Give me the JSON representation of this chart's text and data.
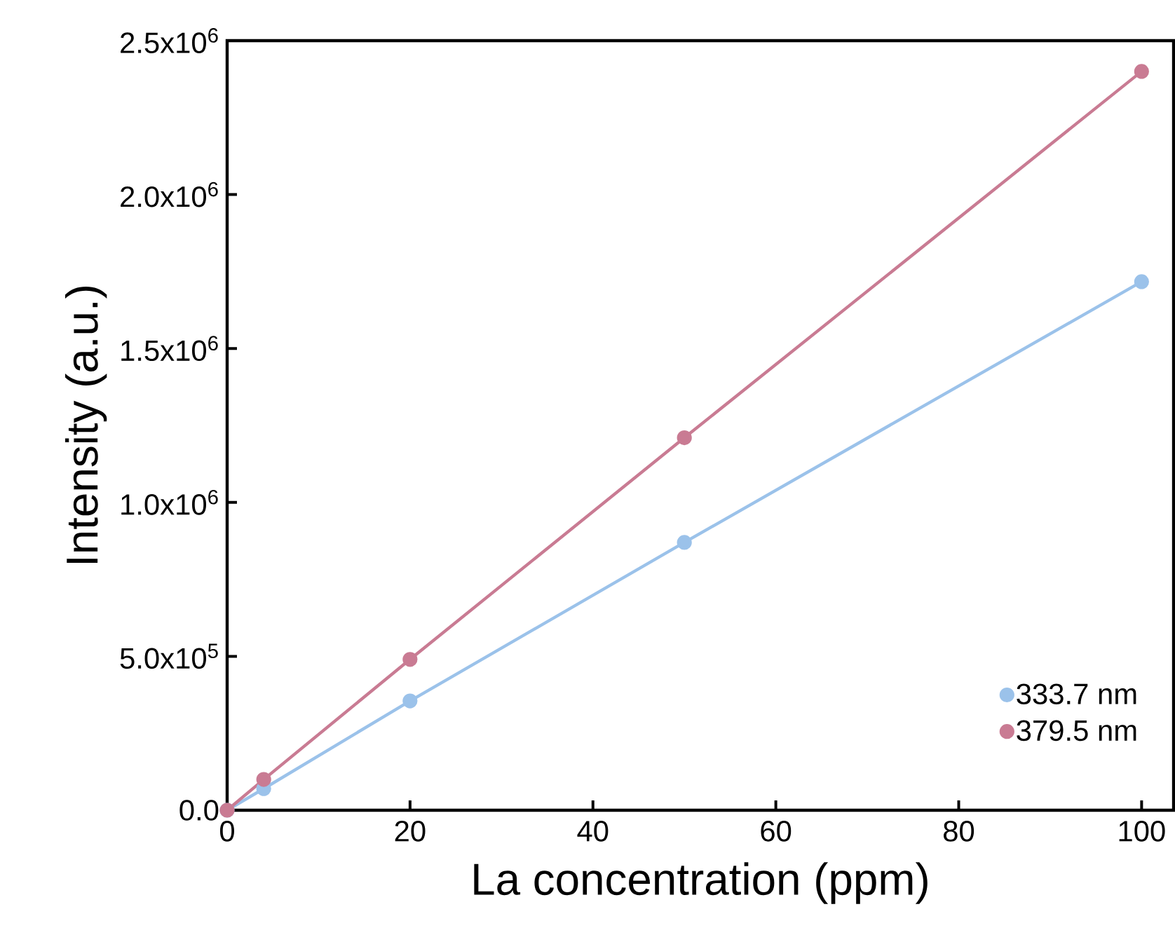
{
  "chart_data": {
    "type": "line",
    "xlabel": "La concentration (ppm)",
    "ylabel": "Intensity (a.u.)",
    "x": [
      0,
      4,
      20,
      50,
      100
    ],
    "series": [
      {
        "name": "333.7 nm",
        "color": "#9bc2ea",
        "values": [
          0,
          70000,
          355000,
          870000,
          1717000
        ]
      },
      {
        "name": "379.5 nm",
        "color": "#c97b93",
        "values": [
          0,
          100000,
          490000,
          1210000,
          2400000
        ]
      }
    ],
    "xlim": [
      0,
      103.5
    ],
    "ylim": [
      0,
      2500000
    ],
    "xticks": [
      0,
      20,
      40,
      60,
      80,
      100
    ],
    "yticks": [
      {
        "value": 0,
        "label": "0.0"
      },
      {
        "value": 500000,
        "label": "5.0x10$^{5}$"
      },
      {
        "value": 1000000,
        "label": "1.0x10$^{6}$"
      },
      {
        "value": 1500000,
        "label": "1.5x10$^{6}$"
      },
      {
        "value": 2000000,
        "label": "2.0x10$^{6}$"
      },
      {
        "value": 2500000,
        "label": "2.5x10$^{6}$"
      }
    ],
    "marker": "circle",
    "line_style": "solid",
    "legend": "bottom right",
    "grid": false
  }
}
